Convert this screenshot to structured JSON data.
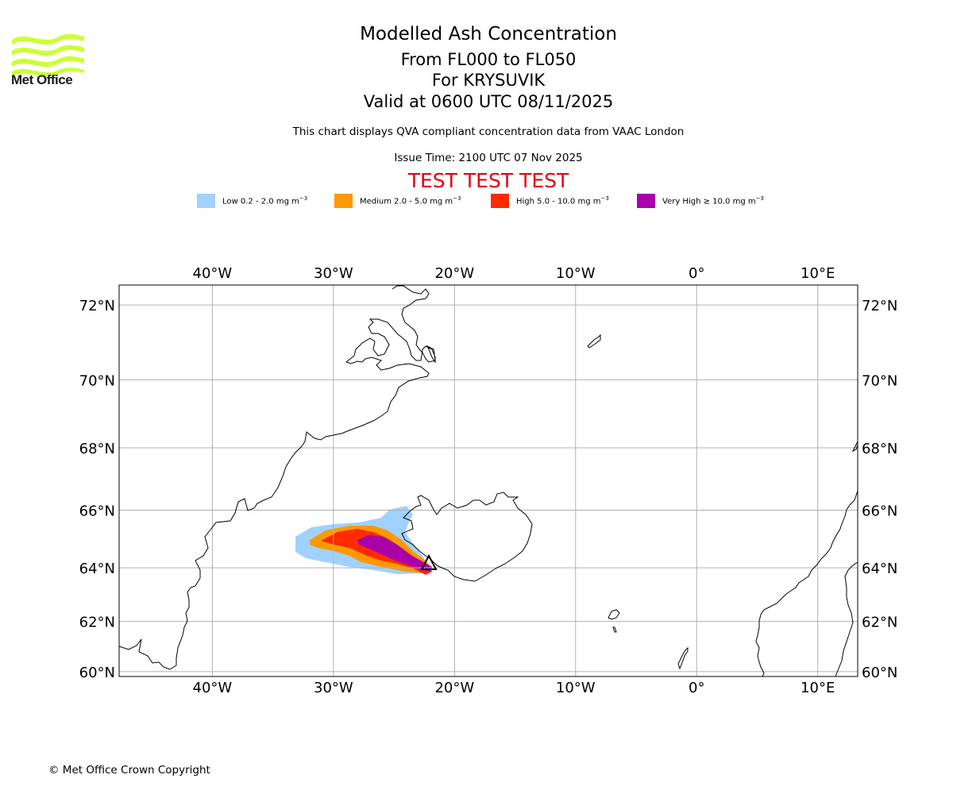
{
  "header": {
    "logo_text": "Met Office",
    "title": "Modelled Ash Concentration",
    "levels": "From FL000 to FL050",
    "volcano": "For KRYSUVIK",
    "valid": "Valid at 0600 UTC 08/11/2025",
    "description": "This chart displays QVA compliant concentration data from VAAC London",
    "issue_time": "Issue Time: 2100 UTC 07 Nov 2025",
    "test_banner": "TEST TEST TEST"
  },
  "colors": {
    "test_banner": "#e3000f",
    "logo": "#ccff33",
    "grid": "#b0b0b0"
  },
  "legend": [
    {
      "label": "Low 0.2 - 2.0 mg m",
      "unit_exp": "−3",
      "color": "#a0d2ff"
    },
    {
      "label": "Medium 2.0 - 5.0 mg m",
      "unit_exp": "−3",
      "color": "#ff9900"
    },
    {
      "label": "High 5.0 - 10.0 mg m",
      "unit_exp": "−3",
      "color": "#ff2a00"
    },
    {
      "label": "Very High  ≥  10.0 mg m",
      "unit_exp": "−3",
      "color": "#aa00aa"
    }
  ],
  "chart_data": {
    "type": "heatmap",
    "title": "Modelled Ash Concentration",
    "projection": "Mercator",
    "extent": {
      "lon": [
        -47.7,
        13.3
      ],
      "lat": [
        59.8,
        72.5
      ]
    },
    "grid": true,
    "x_ticks": [
      "40°W",
      "30°W",
      "20°W",
      "10°W",
      "0°",
      "10°E"
    ],
    "x_tick_values": [
      -40,
      -30,
      -20,
      -10,
      0,
      10
    ],
    "y_ticks": [
      "72°N",
      "70°N",
      "68°N",
      "66°N",
      "64°N",
      "62°N",
      "60°N"
    ],
    "y_tick_values": [
      72,
      70,
      68,
      66,
      64,
      62,
      60
    ],
    "volcano": {
      "name": "KRYSUVIK",
      "lon": -22.1,
      "lat": 63.9,
      "marker": "triangle"
    },
    "ash_levels": [
      {
        "level": "Low",
        "range_mg_m3": [
          0.2,
          2.0
        ],
        "lon_range": [
          -33.3,
          -21.8
        ],
        "lat_range": [
          63.7,
          66.0
        ]
      },
      {
        "level": "Medium",
        "range_mg_m3": [
          2.0,
          5.0
        ],
        "lon_range": [
          -32.0,
          -21.8
        ],
        "lat_range": [
          63.7,
          65.3
        ]
      },
      {
        "level": "High",
        "range_mg_m3": [
          5.0,
          10.0
        ],
        "lon_range": [
          -31.0,
          -21.9
        ],
        "lat_range": [
          63.7,
          65.2
        ]
      },
      {
        "level": "Very High",
        "range_mg_m3": [
          10.0,
          null
        ],
        "lon_range": [
          -28.0,
          -22.0
        ],
        "lat_range": [
          63.8,
          64.9
        ]
      }
    ]
  },
  "footer": {
    "copyright": "© Met Office Crown Copyright"
  }
}
